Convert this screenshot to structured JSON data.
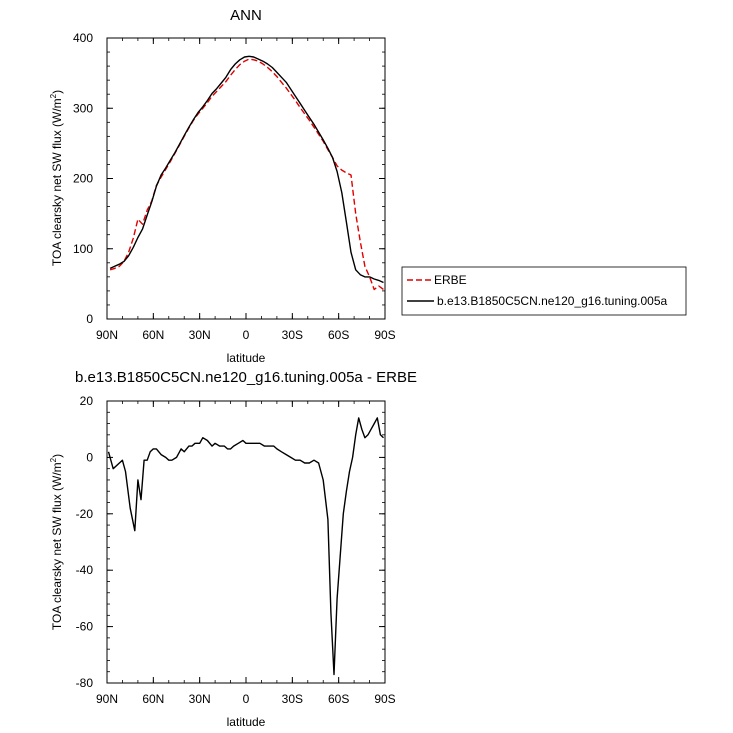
{
  "chart_data": [
    {
      "type": "line",
      "title": "ANN",
      "xlabel": "latitude",
      "ylabel_main": "TOA clearsky net SW flux (W/m",
      "ylabel_sup": "2",
      "ylabel_end": ")",
      "xlim": [
        90,
        -90
      ],
      "ylim": [
        0,
        400
      ],
      "xticks": [
        90,
        60,
        30,
        0,
        -30,
        -60,
        -90
      ],
      "xtick_labels": [
        "90N",
        "60N",
        "30N",
        "0",
        "30S",
        "60S",
        "90S"
      ],
      "yticks": [
        0,
        100,
        200,
        300,
        400
      ],
      "ytick_labels": [
        "0",
        "100",
        "200",
        "300",
        "400"
      ],
      "legend": "right-outside",
      "series": [
        {
          "name": "ERBE",
          "color": "#e00000",
          "dash": "dashed",
          "x": [
            88,
            85,
            82,
            79,
            76,
            73,
            70,
            67,
            64,
            61,
            58,
            55,
            52,
            49,
            46,
            43,
            40,
            37,
            34,
            31,
            28,
            25,
            22,
            19,
            16,
            13,
            10,
            7,
            4,
            1,
            -2,
            -5,
            -8,
            -11,
            -14,
            -17,
            -20,
            -23,
            -26,
            -29,
            -32,
            -35,
            -38,
            -41,
            -44,
            -47,
            -50,
            -53,
            -56,
            -59,
            -62,
            -65,
            -68,
            -71,
            -74,
            -77,
            -80,
            -83,
            -86,
            -89
          ],
          "y": [
            70,
            72,
            75,
            82,
            95,
            115,
            142,
            135,
            155,
            168,
            190,
            202,
            213,
            224,
            236,
            248,
            260,
            272,
            283,
            292,
            300,
            308,
            317,
            324,
            331,
            338,
            347,
            355,
            362,
            367,
            370,
            369,
            367,
            363,
            358,
            352,
            345,
            337,
            329,
            320,
            311,
            301,
            292,
            283,
            273,
            263,
            253,
            241,
            230,
            218,
            212,
            208,
            205,
            150,
            110,
            75,
            60,
            42,
            47,
            42
          ]
        },
        {
          "name": "b.e13.B1850C5CN.ne120_g16.tuning.005a",
          "color": "#000000",
          "dash": "solid",
          "x": [
            88,
            85,
            82,
            79,
            76,
            73,
            70,
            67,
            64,
            61,
            58,
            55,
            52,
            49,
            46,
            43,
            40,
            37,
            34,
            31,
            28,
            25,
            22,
            19,
            16,
            13,
            10,
            7,
            4,
            1,
            -2,
            -5,
            -8,
            -11,
            -14,
            -17,
            -20,
            -23,
            -26,
            -29,
            -32,
            -35,
            -38,
            -41,
            -44,
            -47,
            -50,
            -53,
            -56,
            -59,
            -62,
            -65,
            -68,
            -71,
            -74,
            -77,
            -80,
            -83,
            -86,
            -89
          ],
          "y": [
            72,
            75,
            78,
            82,
            90,
            102,
            116,
            128,
            148,
            167,
            189,
            205,
            215,
            226,
            237,
            249,
            261,
            273,
            284,
            294,
            302,
            311,
            321,
            328,
            336,
            344,
            355,
            363,
            369,
            373,
            374,
            373,
            370,
            367,
            363,
            358,
            351,
            344,
            337,
            327,
            317,
            307,
            297,
            287,
            277,
            266,
            255,
            243,
            230,
            210,
            180,
            138,
            95,
            70,
            63,
            60,
            60,
            57,
            55,
            52
          ]
        }
      ]
    },
    {
      "type": "line",
      "title": "b.e13.B1850C5CN.ne120_g16.tuning.005a - ERBE",
      "xlabel": "latitude",
      "ylabel_main": "TOA clearsky net SW flux (W/m",
      "ylabel_sup": "2",
      "ylabel_end": ")",
      "xlim": [
        90,
        -90
      ],
      "ylim": [
        -80,
        20
      ],
      "xticks": [
        90,
        60,
        30,
        0,
        -30,
        -60,
        -90
      ],
      "xtick_labels": [
        "90N",
        "60N",
        "30N",
        "0",
        "30S",
        "60S",
        "90S"
      ],
      "yticks": [
        -80,
        -60,
        -40,
        -20,
        0,
        20
      ],
      "ytick_labels": [
        "-80",
        "-60",
        "-40",
        "-20",
        "0",
        "20"
      ],
      "series": [
        {
          "name": "",
          "color": "#000000",
          "dash": "solid",
          "x": [
            89,
            86,
            82,
            80,
            78,
            75,
            72,
            70,
            68,
            66,
            64,
            62,
            60,
            58,
            55,
            52,
            50,
            48,
            45,
            42,
            40,
            37,
            35,
            33,
            30,
            28,
            25,
            22,
            20,
            17,
            14,
            12,
            10,
            8,
            5,
            2,
            0,
            -3,
            -6,
            -9,
            -12,
            -15,
            -18,
            -20,
            -23,
            -26,
            -29,
            -32,
            -35,
            -38,
            -41,
            -44,
            -47,
            -50,
            -53,
            -55,
            -57,
            -59,
            -61,
            -63,
            -65,
            -67,
            -69,
            -71,
            -73,
            -75,
            -77,
            -79,
            -81,
            -83,
            -85,
            -87,
            -89
          ],
          "y": [
            2,
            -4,
            -2,
            -1,
            -5,
            -18,
            -26,
            -8,
            -15,
            -1,
            -1,
            2,
            3,
            3,
            1,
            0,
            -1,
            -1,
            0,
            3,
            2,
            4,
            4,
            5,
            5,
            7,
            6,
            4,
            5,
            4,
            4,
            3,
            3,
            4,
            5,
            6,
            5,
            5,
            5,
            5,
            4,
            4,
            4,
            3,
            2,
            1,
            0,
            -1,
            -1,
            -2,
            -2,
            -1,
            -2,
            -8,
            -22,
            -55,
            -77,
            -50,
            -35,
            -20,
            -12,
            -5,
            0,
            8,
            14,
            10,
            7,
            8,
            10,
            12,
            14,
            8,
            7
          ]
        }
      ]
    }
  ]
}
